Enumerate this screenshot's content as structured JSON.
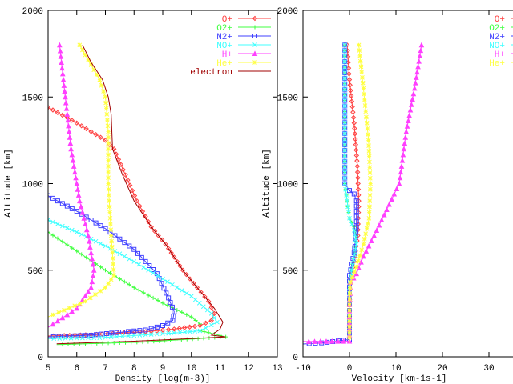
{
  "chart_data": [
    {
      "type": "line",
      "xlabel": "Density  [log(m-3)]",
      "ylabel": "Altitude [km]",
      "xlim": [
        5,
        13
      ],
      "ylim": [
        0,
        2000
      ],
      "xticks": [
        5,
        6,
        7,
        8,
        9,
        10,
        11,
        12,
        13
      ],
      "yticks": [
        0,
        500,
        1000,
        1500,
        2000
      ],
      "grid": false,
      "legend_position": "top-right",
      "series": [
        {
          "name": "O+",
          "color": "#ff4040",
          "marker": "diamond",
          "points": [
            [
              5,
              1440
            ],
            [
              6,
              1350
            ],
            [
              7,
              1250
            ],
            [
              7.3,
              1200
            ],
            [
              7.7,
              1050
            ],
            [
              8.1,
              900
            ],
            [
              8.6,
              750
            ],
            [
              9.1,
              650
            ],
            [
              9.7,
              500
            ],
            [
              10.2,
              400
            ],
            [
              10.6,
              320
            ],
            [
              10.8,
              250
            ],
            [
              10.7,
              210
            ],
            [
              10.3,
              180
            ],
            [
              9.4,
              160
            ],
            [
              8.4,
              145
            ],
            [
              6.5,
              128
            ],
            [
              5,
              120
            ]
          ]
        },
        {
          "name": "O2+",
          "color": "#40ff40",
          "marker": "plus",
          "points": [
            [
              5,
              720
            ],
            [
              6,
              610
            ],
            [
              7,
              500
            ],
            [
              8,
              400
            ],
            [
              9,
              310
            ],
            [
              10,
              230
            ],
            [
              10.3,
              190
            ],
            [
              10.3,
              150
            ],
            [
              10.6,
              140
            ],
            [
              11.2,
              115
            ],
            [
              8.3,
              85
            ],
            [
              5.3,
              70
            ]
          ]
        },
        {
          "name": "N2+",
          "color": "#4040ff",
          "marker": "square",
          "points": [
            [
              5,
              930
            ],
            [
              6,
              840
            ],
            [
              7,
              740
            ],
            [
              8,
              620
            ],
            [
              8.8,
              480
            ],
            [
              9.2,
              340
            ],
            [
              9.4,
              260
            ],
            [
              9.35,
              210
            ],
            [
              9.0,
              180
            ],
            [
              8.4,
              155
            ],
            [
              7.4,
              140
            ],
            [
              6.5,
              125
            ],
            [
              5,
              115
            ]
          ]
        },
        {
          "name": "NO+",
          "color": "#40ffff",
          "marker": "cross",
          "points": [
            [
              5,
              790
            ],
            [
              6,
              720
            ],
            [
              7,
              640
            ],
            [
              8,
              550
            ],
            [
              9,
              450
            ],
            [
              10,
              350
            ],
            [
              10.7,
              250
            ],
            [
              10.9,
              200
            ],
            [
              10.3,
              150
            ],
            [
              9.6,
              140
            ],
            [
              6.8,
              110
            ],
            [
              5,
              105
            ]
          ]
        },
        {
          "name": "H+",
          "color": "#ff40ff",
          "marker": "triangle",
          "points": [
            [
              5.4,
              1800
            ],
            [
              5.6,
              1500
            ],
            [
              5.8,
              1200
            ],
            [
              6.1,
              900
            ],
            [
              6.4,
              700
            ],
            [
              6.6,
              500
            ],
            [
              6.5,
              400
            ],
            [
              6.0,
              280
            ],
            [
              5,
              170
            ]
          ]
        },
        {
          "name": "He+",
          "color": "#ffff40",
          "marker": "star",
          "points": [
            [
              6.1,
              1800
            ],
            [
              6.8,
              1600
            ],
            [
              7.0,
              1500
            ],
            [
              7.1,
              1300
            ],
            [
              7.1,
              1000
            ],
            [
              7.2,
              700
            ],
            [
              7.3,
              470
            ],
            [
              7.0,
              400
            ],
            [
              6.3,
              320
            ],
            [
              5,
              230
            ]
          ]
        },
        {
          "name": "electron",
          "color": "#a00000",
          "marker": "none",
          "points": [
            [
              6.2,
              1800
            ],
            [
              6.5,
              1700
            ],
            [
              6.9,
              1600
            ],
            [
              7.1,
              1500
            ],
            [
              7.2,
              1400
            ],
            [
              7.25,
              1200
            ],
            [
              7.6,
              1050
            ],
            [
              8.0,
              900
            ],
            [
              8.6,
              750
            ],
            [
              9.1,
              650
            ],
            [
              9.7,
              500
            ],
            [
              10.3,
              380
            ],
            [
              10.8,
              280
            ],
            [
              11.1,
              200
            ],
            [
              11.0,
              160
            ],
            [
              10.7,
              125
            ],
            [
              11.2,
              115
            ],
            [
              10,
              105
            ],
            [
              8,
              90
            ],
            [
              5.3,
              75
            ]
          ]
        }
      ]
    },
    {
      "type": "line",
      "xlabel": "Velocity  [km-1s-1]",
      "ylabel": "Altitude [km]",
      "xlim": [
        -10,
        40
      ],
      "ylim": [
        0,
        2000
      ],
      "xticks": [
        -10,
        0,
        10,
        20,
        30
      ],
      "yticks": [
        0,
        500,
        1000,
        1500,
        2000
      ],
      "grid": false,
      "legend_position": "top-right",
      "series": [
        {
          "name": "O+",
          "color": "#ff4040",
          "marker": "diamond",
          "points": [
            [
              -0.5,
              1800
            ],
            [
              0,
              1600
            ],
            [
              1,
              1350
            ],
            [
              1.7,
              1100
            ],
            [
              2,
              900
            ],
            [
              1.8,
              700
            ],
            [
              1,
              550
            ],
            [
              0.2,
              450
            ],
            [
              0,
              300
            ],
            [
              0,
              100
            ]
          ]
        },
        {
          "name": "O2+",
          "color": "#40ff40",
          "marker": "plus",
          "points": [
            [
              -1,
              1800
            ],
            [
              -1,
              1000
            ],
            [
              -0.5,
              900
            ],
            [
              0,
              800
            ],
            [
              1,
              750
            ],
            [
              1.5,
              700
            ],
            [
              0.5,
              500
            ],
            [
              0,
              400
            ],
            [
              0,
              100
            ]
          ]
        },
        {
          "name": "N2+",
          "color": "#4040ff",
          "marker": "square",
          "points": [
            [
              -1,
              1800
            ],
            [
              -1,
              1000
            ],
            [
              0,
              960
            ],
            [
              1,
              940
            ],
            [
              1.5,
              900
            ],
            [
              1.5,
              750
            ],
            [
              1,
              600
            ],
            [
              0,
              470
            ],
            [
              0,
              100
            ],
            [
              -6,
              80
            ],
            [
              -10,
              74
            ]
          ]
        },
        {
          "name": "NO+",
          "color": "#40ffff",
          "marker": "cross",
          "points": [
            [
              -1,
              1800
            ],
            [
              -1,
              1000
            ],
            [
              -0.5,
              900
            ],
            [
              0,
              800
            ],
            [
              1,
              730
            ],
            [
              1.5,
              650
            ],
            [
              0.5,
              500
            ],
            [
              0,
              400
            ],
            [
              0,
              100
            ]
          ]
        },
        {
          "name": "H+",
          "color": "#ff40ff",
          "marker": "triangle",
          "points": [
            [
              15.5,
              1800
            ],
            [
              14,
              1550
            ],
            [
              12.2,
              1300
            ],
            [
              10.7,
              1000
            ],
            [
              8,
              850
            ],
            [
              5.3,
              700
            ],
            [
              3,
              580
            ],
            [
              1.5,
              480
            ],
            [
              0.3,
              430
            ],
            [
              0,
              300
            ],
            [
              0,
              90
            ],
            [
              -10,
              88
            ]
          ]
        },
        {
          "name": "He+",
          "color": "#ffff40",
          "marker": "star",
          "points": [
            [
              2,
              1800
            ],
            [
              3,
              1550
            ],
            [
              4.1,
              1250
            ],
            [
              4.5,
              1000
            ],
            [
              4.2,
              800
            ],
            [
              3,
              650
            ],
            [
              1.5,
              520
            ],
            [
              0.2,
              430
            ],
            [
              0,
              300
            ],
            [
              0,
              80
            ]
          ]
        }
      ]
    }
  ]
}
